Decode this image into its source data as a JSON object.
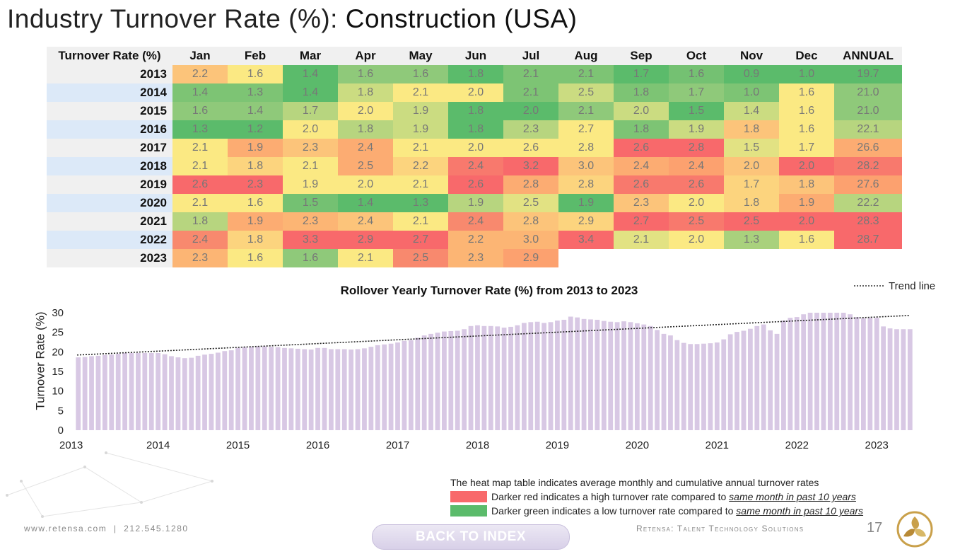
{
  "title": {
    "part1": "Industry Turnover Rate (%): ",
    "part2": "Construction (USA)"
  },
  "heatmap": {
    "header": [
      "Turnover Rate (%)",
      "Jan",
      "Feb",
      "Mar",
      "Apr",
      "May",
      "Jun",
      "Jul",
      "Aug",
      "Sep",
      "Oct",
      "Nov",
      "Dec",
      "ANNUAL"
    ],
    "rows": [
      {
        "year": "2013",
        "values": [
          "2.2",
          "1.6",
          "1.4",
          "1.6",
          "1.6",
          "1.8",
          "2.1",
          "2.1",
          "1.7",
          "1.6",
          "0.9",
          "1.0",
          "19.7"
        ],
        "colors": [
          "#fcc47a",
          "#fbe983",
          "#5bbb6b",
          "#8fc97a",
          "#8fc97a",
          "#5bbb6b",
          "#7dc474",
          "#7dc474",
          "#5bbb6b",
          "#74c172",
          "#5bbb6b",
          "#5bbb6b",
          "#5bbb6b"
        ]
      },
      {
        "year": "2014",
        "values": [
          "1.4",
          "1.3",
          "1.4",
          "1.8",
          "2.1",
          "2.0",
          "2.1",
          "2.5",
          "1.8",
          "1.7",
          "1.0",
          "1.6",
          "21.0"
        ],
        "colors": [
          "#7dc474",
          "#7dc474",
          "#5bbb6b",
          "#cbdc81",
          "#fbe983",
          "#fbe983",
          "#7dc474",
          "#cbdc81",
          "#7dc474",
          "#8fc97a",
          "#7dc474",
          "#fbe983",
          "#8fc97a"
        ]
      },
      {
        "year": "2015",
        "values": [
          "1.6",
          "1.4",
          "1.7",
          "2.0",
          "1.9",
          "1.8",
          "2.0",
          "2.1",
          "2.0",
          "1.5",
          "1.4",
          "1.6",
          "21.0"
        ],
        "colors": [
          "#8fc97a",
          "#8fc97a",
          "#b7d57f",
          "#fbe983",
          "#cbdc81",
          "#5bbb6b",
          "#5bbb6b",
          "#8fc97a",
          "#cbdc81",
          "#5bbb6b",
          "#cbdc81",
          "#fbe983",
          "#8fc97a"
        ]
      },
      {
        "year": "2016",
        "values": [
          "1.3",
          "1.2",
          "2.0",
          "1.8",
          "1.9",
          "1.8",
          "2.3",
          "2.7",
          "1.8",
          "1.9",
          "1.8",
          "1.6",
          "22.1"
        ],
        "colors": [
          "#5bbb6b",
          "#5bbb6b",
          "#fbe983",
          "#b7d57f",
          "#cbdc81",
          "#5bbb6b",
          "#b7d57f",
          "#fbe983",
          "#7dc474",
          "#cbdc81",
          "#fcc47a",
          "#fbe983",
          "#b7d57f"
        ]
      },
      {
        "year": "2017",
        "values": [
          "2.1",
          "1.9",
          "2.3",
          "2.4",
          "2.1",
          "2.0",
          "2.6",
          "2.8",
          "2.6",
          "2.8",
          "1.5",
          "1.7",
          "26.6"
        ],
        "colors": [
          "#fbe983",
          "#fcac72",
          "#fcc47a",
          "#fcac72",
          "#fbe983",
          "#fbe983",
          "#fbe983",
          "#fbe983",
          "#f8696b",
          "#f8696b",
          "#e2e283",
          "#fbe983",
          "#fcac72"
        ]
      },
      {
        "year": "2018",
        "values": [
          "2.1",
          "1.8",
          "2.1",
          "2.5",
          "2.2",
          "2.4",
          "3.2",
          "3.0",
          "2.4",
          "2.4",
          "2.0",
          "2.0",
          "28.2"
        ],
        "colors": [
          "#fbe983",
          "#fcd47e",
          "#fbe983",
          "#fcac72",
          "#fcd47e",
          "#f8796d",
          "#f8696b",
          "#fcc47a",
          "#fcac72",
          "#fca16f",
          "#fcc47a",
          "#f8696b",
          "#f8796d"
        ]
      },
      {
        "year": "2019",
        "values": [
          "2.6",
          "2.3",
          "1.9",
          "2.0",
          "2.1",
          "2.6",
          "2.8",
          "2.8",
          "2.6",
          "2.6",
          "1.7",
          "1.8",
          "27.6"
        ],
        "colors": [
          "#f8696b",
          "#f8696b",
          "#fbe983",
          "#fbe983",
          "#fbe983",
          "#f8696b",
          "#fcac72",
          "#fcd47e",
          "#f8796d",
          "#f8796d",
          "#fcd47e",
          "#fcc47a",
          "#fca16f"
        ]
      },
      {
        "year": "2020",
        "values": [
          "2.1",
          "1.6",
          "1.5",
          "1.4",
          "1.3",
          "1.9",
          "2.5",
          "1.9",
          "2.3",
          "2.0",
          "1.8",
          "1.9",
          "22.2"
        ],
        "colors": [
          "#fbe983",
          "#fbe983",
          "#74c172",
          "#5bbb6b",
          "#5bbb6b",
          "#b7d57f",
          "#e2e283",
          "#5bbb6b",
          "#fcc47a",
          "#fbe983",
          "#fcd47e",
          "#fcac72",
          "#b7d57f"
        ]
      },
      {
        "year": "2021",
        "values": [
          "1.8",
          "1.9",
          "2.3",
          "2.4",
          "2.1",
          "2.4",
          "2.8",
          "2.9",
          "2.7",
          "2.5",
          "2.5",
          "2.0",
          "28.3"
        ],
        "colors": [
          "#b7d57f",
          "#fcac72",
          "#fcb574",
          "#fcc47a",
          "#fbe983",
          "#f8896e",
          "#fcc47a",
          "#fcd47e",
          "#f8696b",
          "#f8796d",
          "#f8696b",
          "#f8696b",
          "#f8696b"
        ]
      },
      {
        "year": "2022",
        "values": [
          "2.4",
          "1.8",
          "3.3",
          "2.9",
          "2.7",
          "2.2",
          "3.0",
          "3.4",
          "2.1",
          "2.0",
          "1.3",
          "1.6",
          "28.7"
        ],
        "colors": [
          "#f8896e",
          "#fcd47e",
          "#f8696b",
          "#f8696b",
          "#f8696b",
          "#fcb574",
          "#fcb574",
          "#f8696b",
          "#e2e283",
          "#fbe983",
          "#a9d17d",
          "#fbe983",
          "#f8696b"
        ]
      },
      {
        "year": "2023",
        "values": [
          "2.3",
          "1.6",
          "1.6",
          "2.1",
          "2.5",
          "2.3",
          "2.9",
          "",
          "",
          "",
          "",
          "",
          ""
        ],
        "colors": [
          "#fcb574",
          "#fbe983",
          "#8fc97a",
          "#fbe983",
          "#f8896e",
          "#fcb574",
          "#fca16f",
          "",
          "",
          "",
          "",
          "",
          ""
        ]
      }
    ]
  },
  "chart_data": {
    "type": "bar",
    "title": "Rollover Yearly Turnover Rate (%) from 2013 to 2023",
    "ylabel": "Turnover Rate (%)",
    "xlabel": "",
    "ylim": [
      0,
      30
    ],
    "yticks": [
      "0",
      "5",
      "10",
      "15",
      "20",
      "25",
      "30"
    ],
    "xticks": [
      "2013",
      "2014",
      "2015",
      "2016",
      "2017",
      "2018",
      "2019",
      "2020",
      "2021",
      "2022",
      "2023"
    ],
    "legend": "top-right",
    "trend_label": "Trend line",
    "trend": {
      "start": 19.2,
      "end": 29.3
    },
    "bar_color": "#d8c8e4",
    "series": [
      {
        "values": [
          18.6,
          18.7,
          18.9,
          19.0,
          19.2,
          19.3,
          19.5,
          19.7,
          19.7,
          19.7,
          19.7,
          19.7,
          19.7,
          19.4,
          18.9,
          18.6,
          18.4,
          18.5,
          19.0,
          19.3,
          19.5,
          19.8,
          20.2,
          20.4,
          21.0,
          21.2,
          21.3,
          21.4,
          21.4,
          21.3,
          21.2,
          21.0,
          20.9,
          20.8,
          20.7,
          20.6,
          21.0,
          21.0,
          20.7,
          20.7,
          20.7,
          20.6,
          20.7,
          20.9,
          21.3,
          21.7,
          21.9,
          22.1,
          22.4,
          22.8,
          23.0,
          23.6,
          24.2,
          24.6,
          24.9,
          25.2,
          25.3,
          25.4,
          25.8,
          26.6,
          26.8,
          26.6,
          26.6,
          26.5,
          26.2,
          26.4,
          26.8,
          27.4,
          27.6,
          27.7,
          27.4,
          27.6,
          28.0,
          28.2,
          29.0,
          28.8,
          28.4,
          28.3,
          28.2,
          27.9,
          27.7,
          27.6,
          27.8,
          27.6,
          27.3,
          27.0,
          26.6,
          25.6,
          24.6,
          24.2,
          23.0,
          22.3,
          22.0,
          22.0,
          22.1,
          22.2,
          22.4,
          23.2,
          24.5,
          25.1,
          25.4,
          25.9,
          26.6,
          27.0,
          25.5,
          24.6,
          28.0,
          28.7,
          28.9,
          29.6,
          30.0,
          30.0,
          30.0,
          30.0,
          30.0,
          30.0,
          29.6,
          28.9,
          28.6,
          28.7,
          28.7,
          26.5,
          26.0,
          25.8,
          25.8,
          25.8
        ]
      }
    ]
  },
  "legend_box": {
    "intro": "The heat map table indicates average monthly and cumulative annual turnover rates",
    "red_text": "Darker red indicates a high turnover rate compared to ",
    "green_text": "Darker green indicates a low turnover rate compared to ",
    "emph": "same month in past 10 years",
    "red_color": "#f8696b",
    "green_color": "#5bbb6b"
  },
  "footer": {
    "website": "www.retensa.com",
    "separator": "|",
    "phone": "212.545.1280",
    "company": "Retensa: Talent Technology Solutions",
    "page_number": "17",
    "back_button": "BACK TO INDEX"
  }
}
